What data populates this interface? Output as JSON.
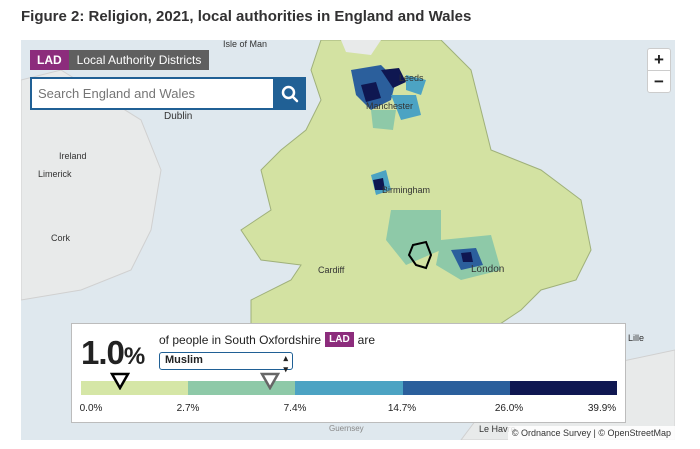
{
  "figure_title": "Figure 2: Religion, 2021, local authorities in England and Wales",
  "lad_tag": {
    "badge": "LAD",
    "label": "Local Authority Districts"
  },
  "search": {
    "placeholder": "Search England and Wales"
  },
  "zoom": {
    "in": "+",
    "out": "−"
  },
  "places": {
    "isle_of_man": "Isle of Man",
    "dublin": "Dublin",
    "ireland": "Ireland",
    "limerick": "Limerick",
    "cork": "Cork",
    "leeds": "Leeds",
    "manchester": "Manchester",
    "birmingham": "Birmingham",
    "cardiff": "Cardiff",
    "london": "London",
    "lille": "Lille",
    "le_havre": "Le Havre",
    "guernsey": "Guernsey"
  },
  "attribution": "© Ordnance Survey | © OpenStreetMap",
  "panel": {
    "value": "1.0",
    "unit": "%",
    "text_before": "of people in South Oxfordshire",
    "lad_badge": "LAD",
    "text_after": "are",
    "selected_religion": "Muslim"
  },
  "legend": {
    "colors": [
      "#d5e6a6",
      "#8ec9a8",
      "#4ca3c3",
      "#2b5f9c",
      "#0f1751"
    ],
    "breaks": [
      "0.0%",
      "2.7%",
      "7.4%",
      "14.7%",
      "26.0%",
      "39.9%"
    ]
  },
  "colors": {
    "land": "#d3e2a2",
    "sea": "#dfe8ee",
    "accent": "#206095",
    "lad": "#8c2c7c"
  }
}
